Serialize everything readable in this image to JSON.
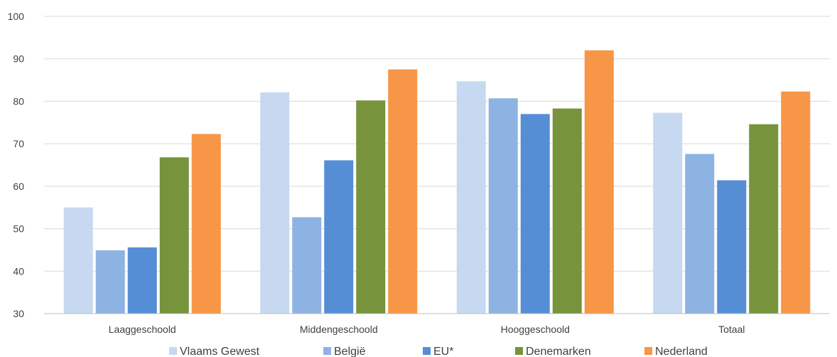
{
  "chart_data": {
    "type": "bar",
    "categories": [
      "Laaggeschoold",
      "Middengeschoold",
      "Hooggeschoold",
      "Totaal"
    ],
    "series": [
      {
        "name": "Vlaams Gewest",
        "color": "#c6d9f1",
        "values": [
          55.0,
          82.1,
          84.7,
          77.3
        ]
      },
      {
        "name": "België",
        "color": "#8db3e2",
        "values": [
          44.9,
          52.7,
          80.7,
          67.6
        ]
      },
      {
        "name": "EU*",
        "color": "#558ed5",
        "values": [
          45.6,
          66.1,
          77.0,
          61.4
        ]
      },
      {
        "name": "Denemarken",
        "color": "#77933c",
        "values": [
          66.8,
          80.2,
          78.3,
          74.6
        ]
      },
      {
        "name": "Nederland",
        "color": "#f79646",
        "values": [
          72.3,
          87.5,
          92.0,
          82.3
        ]
      }
    ],
    "ylim": [
      30,
      100
    ],
    "yticks": [
      "30",
      "40",
      "50",
      "60",
      "70",
      "80",
      "90",
      "100"
    ],
    "grid": true,
    "legend_position": "bottom",
    "title": "",
    "xlabel": "",
    "ylabel": ""
  }
}
